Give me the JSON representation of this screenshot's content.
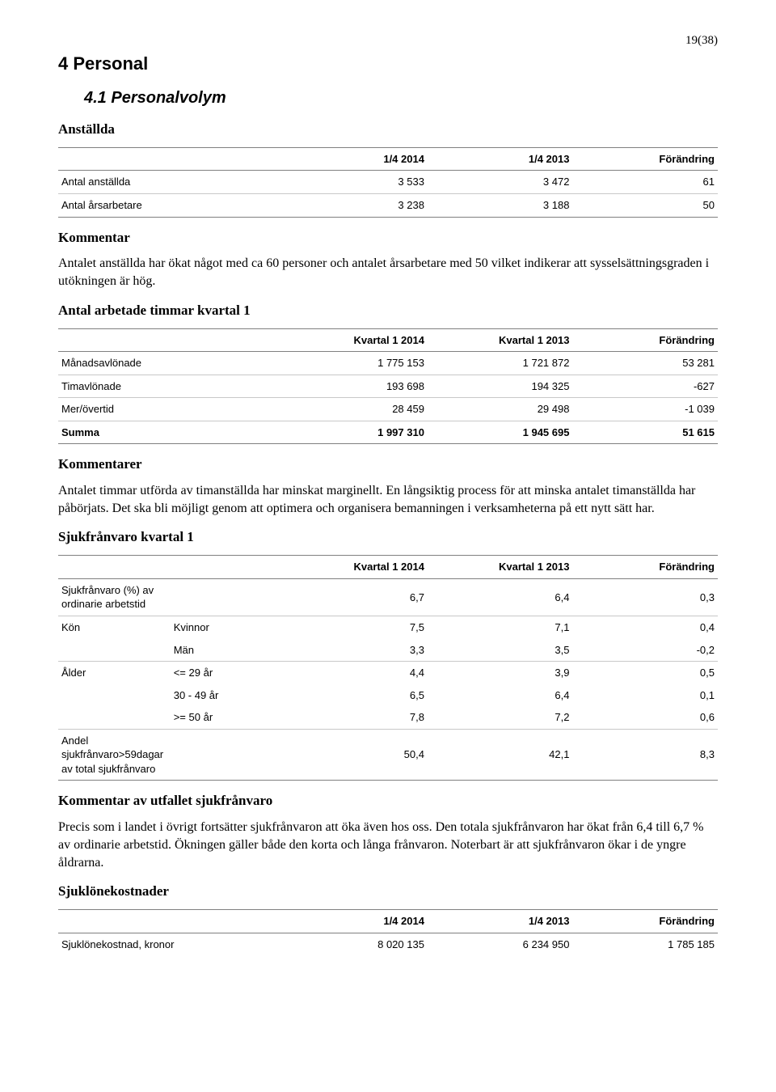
{
  "page_number": "19(38)",
  "h1": "4 Personal",
  "h2": "4.1 Personalvolym",
  "sub1": "Anställda",
  "table_anstallda": {
    "type": "table",
    "columns": [
      "",
      "1/4 2014",
      "1/4 2013",
      "Förändring"
    ],
    "rows": [
      [
        "Antal anställda",
        "3 533",
        "3 472",
        "61"
      ],
      [
        "Antal årsarbetare",
        "3 238",
        "3 188",
        "50"
      ]
    ]
  },
  "kommentar_h": "Kommentar",
  "kommentar_p": "Antalet anställda har ökat något med ca 60 personer och antalet årsarbetare med 50 vilket indikerar att sysselsättningsgraden i utökningen är hög.",
  "sub2": "Antal arbetade timmar kvartal 1",
  "table_timmar": {
    "type": "table",
    "columns": [
      "",
      "Kvartal 1 2014",
      "Kvartal 1 2013",
      "Förändring"
    ],
    "rows": [
      [
        "Månadsavlönade",
        "1 775 153",
        "1 721 872",
        "53 281"
      ],
      [
        "Timavlönade",
        "193 698",
        "194 325",
        "-627"
      ],
      [
        "Mer/övertid",
        "28 459",
        "29 498",
        "-1 039"
      ]
    ],
    "sum": [
      "Summa",
      "1 997 310",
      "1 945 695",
      "51 615"
    ]
  },
  "kommentarer_h": "Kommentarer",
  "kommentarer_p": "Antalet timmar utförda av timanställda har minskat marginellt. En långsiktig process för att minska antalet timanställda har påbörjats. Det ska bli möjligt genom att optimera och organisera bemanningen i verksamheterna på ett nytt sätt har.",
  "sub3": "Sjukfrånvaro kvartal 1",
  "table_sjuk": {
    "type": "table",
    "columns": [
      "",
      "",
      "Kvartal 1 2014",
      "Kvartal 1 2013",
      "Förändring"
    ],
    "rows": [
      {
        "cells": [
          "Sjukfrånvaro (%) av ordinarie arbetstid",
          "",
          "6,7",
          "6,4",
          "0,3"
        ],
        "border": true
      },
      {
        "cells": [
          "Kön",
          "Kvinnor",
          "7,5",
          "7,1",
          "0,4"
        ],
        "border": false
      },
      {
        "cells": [
          "",
          "Män",
          "3,3",
          "3,5",
          "-0,2"
        ],
        "border": true
      },
      {
        "cells": [
          "Ålder",
          "<= 29 år",
          "4,4",
          "3,9",
          "0,5"
        ],
        "border": false
      },
      {
        "cells": [
          "",
          "30 - 49 år",
          "6,5",
          "6,4",
          "0,1"
        ],
        "border": false
      },
      {
        "cells": [
          "",
          ">= 50 år",
          "7,8",
          "7,2",
          "0,6"
        ],
        "border": true
      },
      {
        "cells": [
          "Andel sjukfrånvaro>59dagar av total sjukfrånvaro",
          "",
          "50,4",
          "42,1",
          "8,3"
        ],
        "border": true,
        "last": true
      }
    ]
  },
  "kommentar_sjuk_h": "Kommentar av utfallet sjukfrånvaro",
  "kommentar_sjuk_p": "Precis som i landet i övrigt fortsätter sjukfrånvaron att öka även hos oss. Den totala sjukfrånvaron har ökat från 6,4 till 6,7 % av ordinarie arbetstid. Ökningen gäller både den korta och långa frånvaron. Noterbart är att sjukfrånvaron ökar i de yngre åldrarna.",
  "sub4": "Sjuklönekostnader",
  "table_kost": {
    "type": "table",
    "columns": [
      "",
      "1/4 2014",
      "1/4 2013",
      "Förändring"
    ],
    "rows": [
      [
        "Sjuklönekostnad, kronor",
        "8 020 135",
        "6 234 950",
        "1 785 185"
      ]
    ]
  }
}
